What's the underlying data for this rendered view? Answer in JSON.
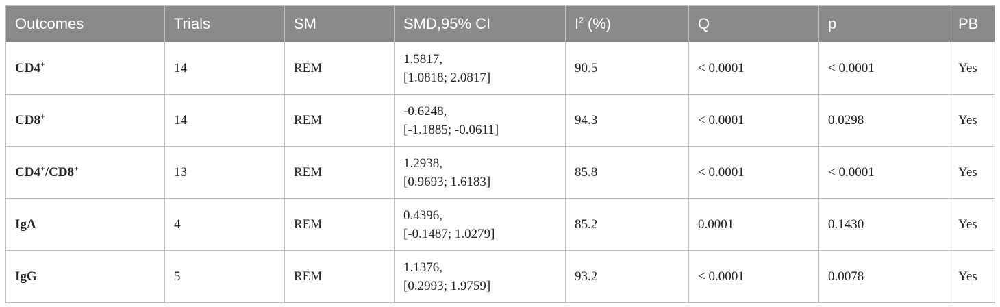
{
  "table": {
    "headers": {
      "outcomes": "Outcomes",
      "trials": "Trials",
      "sm": "SM",
      "smd": "SMD,95% CI",
      "i2_base": "I",
      "i2_sup": "2",
      "i2_rest": " (%)",
      "q": "Q",
      "p": "p",
      "pb": "PB"
    },
    "rows": [
      {
        "outcome": [
          {
            "t": "CD4",
            "sup": "+"
          }
        ],
        "trials": "14",
        "sm": "REM",
        "smd": "1.5817,",
        "ci": "[1.0818; 2.0817]",
        "i2": "90.5",
        "q": "< 0.0001",
        "p": "< 0.0001",
        "pb": "Yes"
      },
      {
        "outcome": [
          {
            "t": "CD8",
            "sup": "+"
          }
        ],
        "trials": "14",
        "sm": "REM",
        "smd": "-0.6248,",
        "ci": "[-1.1885; -0.0611]",
        "i2": "94.3",
        "q": "< 0.0001",
        "p": "0.0298",
        "pb": "Yes"
      },
      {
        "outcome": [
          {
            "t": "CD4",
            "sup": "+"
          },
          {
            "t": "/CD8",
            "sup": "+"
          }
        ],
        "trials": "13",
        "sm": "REM",
        "smd": "1.2938,",
        "ci": "[0.9693; 1.6183]",
        "i2": "85.8",
        "q": "< 0.0001",
        "p": "< 0.0001",
        "pb": "Yes"
      },
      {
        "outcome": [
          {
            "t": "IgA",
            "sup": ""
          }
        ],
        "trials": "4",
        "sm": "REM",
        "smd": "0.4396,",
        "ci": "[-0.1487; 1.0279]",
        "i2": "85.2",
        "q": "0.0001",
        "p": "0.1430",
        "pb": "Yes"
      },
      {
        "outcome": [
          {
            "t": "IgG",
            "sup": ""
          }
        ],
        "trials": "5",
        "sm": "REM",
        "smd": "1.1376,",
        "ci": "[0.2993; 1.9759]",
        "i2": "93.2",
        "q": "< 0.0001",
        "p": "0.0078",
        "pb": "Yes"
      }
    ]
  }
}
